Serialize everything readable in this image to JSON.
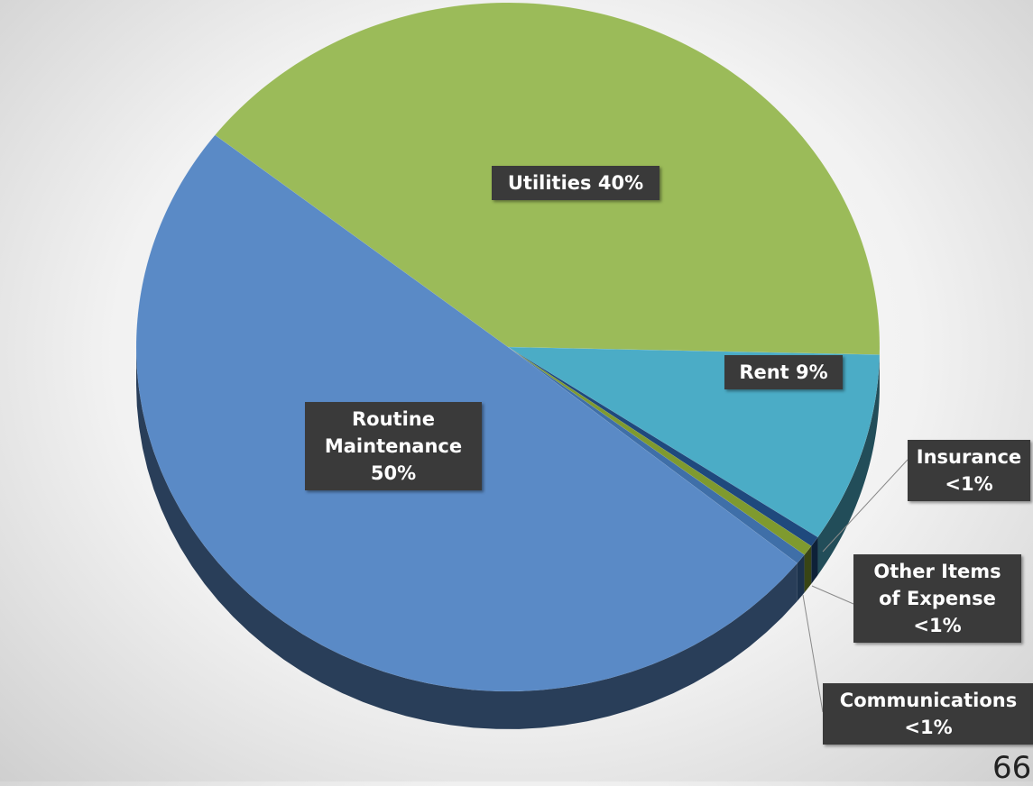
{
  "chart_data": {
    "type": "pie",
    "categories": [
      "Utilities",
      "Rent",
      "Insurance",
      "Other Items of Expense",
      "Communications",
      "Routine Maintenance"
    ],
    "values": [
      40,
      9,
      0.5,
      0.5,
      0.5,
      50
    ],
    "value_labels": [
      "40%",
      "9%",
      "<1%",
      "<1%",
      "<1%",
      "50%"
    ],
    "colors": [
      "#9bbb59",
      "#4bacc6",
      "#1f497d",
      "#7f9a2f",
      "#3f6fa8",
      "#5a8ac6"
    ]
  },
  "page_number": "66"
}
